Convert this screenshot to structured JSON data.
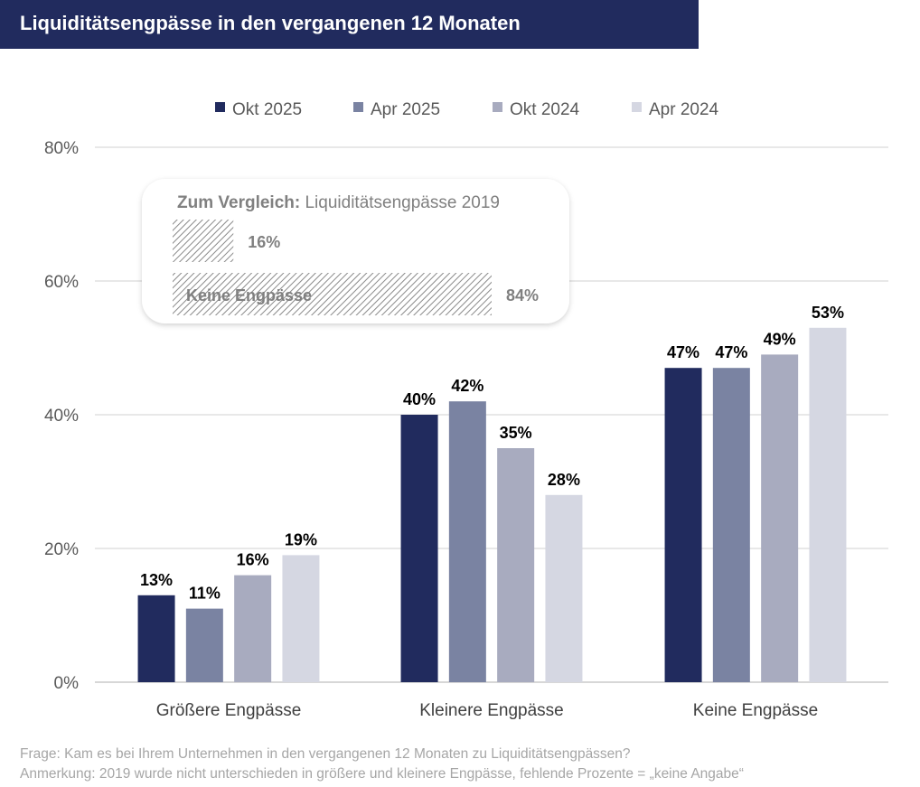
{
  "title": "Liquiditätsengpässe in den vergangenen 12 Monaten",
  "chart_data": {
    "type": "bar",
    "categories": [
      "Größere Engpässe",
      "Kleinere Engpässe",
      "Keine Engpässe"
    ],
    "series": [
      {
        "name": "Okt 2025",
        "color": "#212b5e",
        "values": [
          13,
          40,
          47
        ]
      },
      {
        "name": "Apr 2025",
        "color": "#7a83a2",
        "values": [
          11,
          42,
          47
        ]
      },
      {
        "name": "Okt 2024",
        "color": "#a8abbf",
        "values": [
          16,
          35,
          49
        ]
      },
      {
        "name": "Apr 2024",
        "color": "#d5d7e2",
        "values": [
          19,
          28,
          53
        ]
      }
    ],
    "data_labels": [
      [
        "13%",
        "40%",
        "47%"
      ],
      [
        "11%",
        "42%",
        "47%"
      ],
      [
        "16%",
        "35%",
        "49%"
      ],
      [
        "19%",
        "28%",
        "53%"
      ]
    ],
    "ylim": [
      0,
      80
    ],
    "yticks": [
      0,
      20,
      40,
      60,
      80
    ],
    "ytick_labels": [
      "0%",
      "20%",
      "40%",
      "60%",
      "80%"
    ],
    "grid": true,
    "legend_position": "top"
  },
  "comparison": {
    "heading_bold": "Zum Vergleich:",
    "heading_rest": "Liquiditätsengpässe 2019",
    "items": [
      {
        "label": "",
        "value": 16,
        "value_label": "16%"
      },
      {
        "label": "Keine Engpässe",
        "value": 84,
        "value_label": "84%"
      }
    ]
  },
  "footnotes": {
    "question": "Frage: Kam es bei Ihrem Unternehmen in den vergangenen 12 Monaten zu Liquiditätsengpässen?",
    "note": "Anmerkung: 2019 wurde nicht unterschieden in größere und kleinere Engpässe, fehlende Prozente = „keine Angabe“"
  }
}
